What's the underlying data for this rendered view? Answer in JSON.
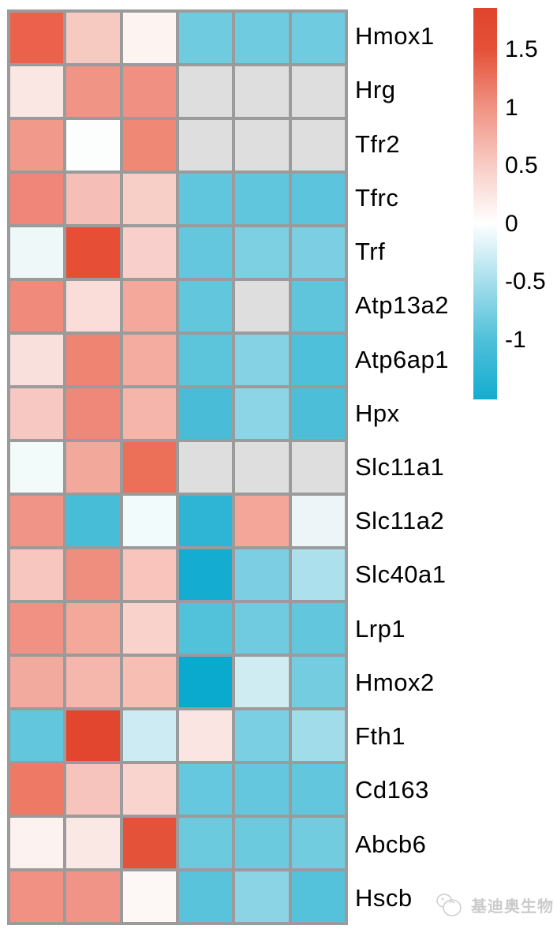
{
  "chart_data": {
    "type": "heatmap",
    "rows": [
      "Hmox1",
      "Hrg",
      "Tfr2",
      "Tfrc",
      "Trf",
      "Atp13a2",
      "Atp6ap1",
      "Hpx",
      "Slc11a1",
      "Slc11a2",
      "Slc40a1",
      "Lrp1",
      "Hmox2",
      "Fth1",
      "Cd163",
      "Abcb6",
      "Hscb"
    ],
    "n_columns": 6,
    "values": [
      [
        1.4,
        0.45,
        0.08,
        -0.8,
        -0.8,
        -0.8
      ],
      [
        0.25,
        0.95,
        1.0,
        null,
        null,
        null
      ],
      [
        0.85,
        0.02,
        1.05,
        null,
        null,
        null
      ],
      [
        1.05,
        0.55,
        0.4,
        -0.85,
        -0.85,
        -0.9
      ],
      [
        -0.08,
        1.6,
        0.4,
        -0.85,
        -0.65,
        -0.65
      ],
      [
        1.0,
        0.3,
        0.75,
        -0.85,
        null,
        -0.9
      ],
      [
        0.28,
        1.1,
        0.7,
        -0.9,
        -0.6,
        -1.0
      ],
      [
        0.5,
        1.0,
        0.6,
        -1.05,
        -0.55,
        -1.0
      ],
      [
        -0.05,
        0.75,
        1.25,
        null,
        null,
        null
      ],
      [
        0.95,
        -1.05,
        -0.05,
        -1.25,
        0.75,
        -0.1
      ],
      [
        0.5,
        1.0,
        0.5,
        -1.45,
        -0.65,
        -0.4
      ],
      [
        0.95,
        0.75,
        0.35,
        -1.0,
        -0.75,
        -0.85
      ],
      [
        0.75,
        0.6,
        0.55,
        -1.5,
        -0.25,
        -0.7
      ],
      [
        -0.85,
        1.65,
        -0.3,
        0.25,
        -0.65,
        -0.5
      ],
      [
        1.15,
        0.5,
        0.35,
        -0.8,
        -0.82,
        -0.85
      ],
      [
        0.1,
        0.2,
        1.5,
        -0.78,
        -0.78,
        -0.75
      ],
      [
        0.95,
        0.95,
        0.06,
        -0.95,
        -0.55,
        -1.0
      ]
    ],
    "cell_colors": [
      [
        "#EB614C",
        "#F6C9C1",
        "#FDF4F2",
        "#6ECBE0",
        "#6ECBE0",
        "#6FCBE0"
      ],
      [
        "#FAE6E3",
        "#F09486",
        "#F09082",
        "#DEDEDE",
        "#DEDEDE",
        "#DEDEDE"
      ],
      [
        "#F19A8C",
        "#FBFEFD",
        "#F08876",
        "#DEDEDE",
        "#DEDEDE",
        "#DEDEDE"
      ],
      [
        "#EF8679",
        "#F5BEB6",
        "#F8CFC7",
        "#60C6DD",
        "#60C6DD",
        "#5CC4DC"
      ],
      [
        "#EFF8F8",
        "#E64F36",
        "#F8CFCA",
        "#64C7DD",
        "#7DD0E2",
        "#7CCFE2"
      ],
      [
        "#F08A7B",
        "#FADDD9",
        "#F4A89B",
        "#62C6DD",
        "#DEDEDE",
        "#5FC5DC"
      ],
      [
        "#FAE0DD",
        "#EF8472",
        "#F4ABA0",
        "#5CC4DB",
        "#84D2E4",
        "#4FC0D9"
      ],
      [
        "#F6C8C1",
        "#EF8878",
        "#F5B5AB",
        "#49BDD7",
        "#8BD5E6",
        "#4CBED8"
      ],
      [
        "#F3FBFA",
        "#F2A89B",
        "#EC7058",
        "#DEDEDE",
        "#DEDEDE",
        "#DEDEDE"
      ],
      [
        "#F09488",
        "#48BDD8",
        "#F2FBFB",
        "#2EB4D4",
        "#F4A698",
        "#EDF5F8"
      ],
      [
        "#F7C6BF",
        "#EF8E7E",
        "#F8C4BC",
        "#14ACD0",
        "#7CCFE2",
        "#ACE0ED"
      ],
      [
        "#F09184",
        "#F3A89A",
        "#F9D2CB",
        "#52C1DA",
        "#70CBE0",
        "#62C6DD"
      ],
      [
        "#F2A99E",
        "#F5B6AC",
        "#F7BFB4",
        "#0AA9CE",
        "#CFECF3",
        "#74CCE0"
      ],
      [
        "#62C6DD",
        "#E2462E",
        "#CDEBF2",
        "#FAE5E2",
        "#7BCFE2",
        "#A0DCEA"
      ],
      [
        "#EE7A66",
        "#F6C4BC",
        "#F9D4CE",
        "#66C8DE",
        "#64C7DD",
        "#62C6DD"
      ],
      [
        "#FCF2EF",
        "#FAE8E5",
        "#E5523A",
        "#6CCADF",
        "#6CCADF",
        "#72CCE0"
      ],
      [
        "#F09183",
        "#F09488",
        "#FDF7F6",
        "#58C3DB",
        "#8AD4E6",
        "#54C2DA"
      ]
    ],
    "na_color": "#DEDEDE",
    "grid_color": "#9B9B9B",
    "legend": {
      "tick_labels": [
        "1.5",
        "1",
        "0.5",
        "0",
        "-0.5",
        "-1"
      ],
      "tick_values": [
        1.5,
        1,
        0.5,
        0,
        -0.5,
        -1
      ],
      "value_range_top_to_bottom": [
        1.86,
        -1.51
      ],
      "gradient_top_to_bottom": [
        [
          "0%",
          "#E0442C"
        ],
        [
          "10.7%",
          "#E55138"
        ],
        [
          "24.8%",
          "#F09080"
        ],
        [
          "40.2%",
          "#F8CCC4"
        ],
        [
          "55%",
          "#FFFFFF"
        ],
        [
          "70.1%",
          "#A5DEEC"
        ],
        [
          "84.8%",
          "#4FC0D9"
        ],
        [
          "100%",
          "#14ACD0"
        ]
      ]
    }
  },
  "watermark": {
    "text": "基迪奥生物"
  }
}
